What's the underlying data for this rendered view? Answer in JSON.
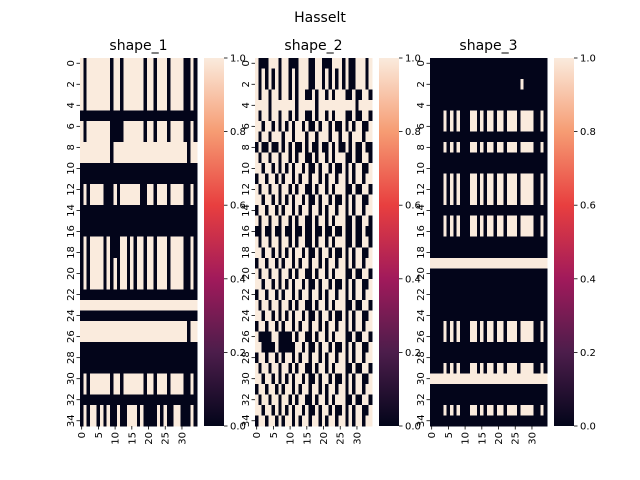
{
  "figure": {
    "title": "Hasselt"
  },
  "colorbar": {
    "ticks": [
      "0.0",
      "0.2",
      "0.4",
      "0.6",
      "0.8",
      "1.0"
    ],
    "colormap": "rocket",
    "stops": [
      "#03051a",
      "#4c1d4b",
      "#a11a5b",
      "#e83f3f",
      "#f69c73",
      "#faebdd"
    ]
  },
  "chart_data": [
    {
      "type": "heatmap",
      "title": "shape_1",
      "rows": 35,
      "cols": 35,
      "ytick_labels": [
        "0",
        "2",
        "4",
        "6",
        "8",
        "10",
        "12",
        "14",
        "16",
        "18",
        "20",
        "22",
        "24",
        "26",
        "28",
        "30",
        "32",
        "34"
      ],
      "xtick_labels": [
        "0",
        "5",
        "10",
        "15",
        "20",
        "25",
        "30"
      ],
      "vmin": 0,
      "vmax": 1,
      "values": [
        "10111111101101111110110111011110010",
        "10111111101101111110110111011110010",
        "10111111101101111110110111011110010",
        "10111111101101111110110111011110010",
        "10111111101101111110110111011110010",
        "00000000000000000000000000000000000",
        "10111111100001111110110111011110010",
        "10111111100001111110110111011110010",
        "11111111101111111111111111111111011",
        "11111111101111111111111111111111011",
        "00000000000000000000000000000000000",
        "00000000000000000000000000000000000",
        "01011110001011111100110111011110010",
        "01011110001011111100110111011110010",
        "00000000000000000000000000000000000",
        "00000000000000000000000000000000000",
        "00000000000000000000000000000000000",
        "01011110100011010110110111011110010",
        "01011110100011010110110111011110010",
        "01011110101011010110110111011110010",
        "01011110101011010110110111011110010",
        "01011110101011010110110111011110010",
        "00000000000000000000000000000000000",
        "11111111111111111111111111111111111",
        "00000000000000000000000000000000000",
        "11111111111111111111111111111111011",
        "11111111111111111111111111111111011",
        "00000000000000000000000000000000000",
        "00000000000000000000000000000000000",
        "00000000000000000000000000000000000",
        "01011111101101111110110111011110010",
        "01011111101101111110110111011110010",
        "00000000000000000000000000000000000",
        "01011010100100111010000101001100010",
        "01011010100100111010000101001100010"
      ]
    },
    {
      "type": "heatmap",
      "title": "shape_2",
      "rows": 35,
      "cols": 35,
      "ytick_labels": [
        "0",
        "2",
        "4",
        "6",
        "8",
        "10",
        "12",
        "14",
        "16",
        "18",
        "20",
        "22",
        "24",
        "26",
        "28",
        "30",
        "32",
        "34"
      ],
      "xtick_labels": [
        "0",
        "5",
        "10",
        "15",
        "20",
        "25",
        "30"
      ],
      "vmin": 0,
      "vmax": 1,
      "values": [
        "10001110110001110011000111010011101",
        "10101010110101110011010101010011101",
        "10101010110101110011010101010011101",
        "10110110110101100101101011100100110",
        "11110111111101111101111111111101111",
        "10110110110101100101101011100100110",
        "11011010101011010010110100101011001",
        "10110111011011101101110110110111011",
        "01001001010100101001001010010100100",
        "10110110110101100101101011100100110",
        "11011010101011010010110100101011001",
        "01101101011010110110101101101011011",
        "10110110110101100101101011100100110",
        "11011010101011010010110100101011001",
        "01101101011010110110101101101011011",
        "10110110110101100101101011100100110",
        "00100100100100100100100100100100100",
        "10110110110101100101101011100100110",
        "11011010101011010010110100101011001",
        "01101101011010110110101101101011011",
        "10110110110101100101101011100100110",
        "11011010101011010010110100101011001",
        "01101101011010110110101101101011011",
        "10110110110101100101101011100100110",
        "11011010101011010010110100101011001",
        "01101101011010110110101101101011011",
        "10000110000101100101101011100100110",
        "11000010000011010010110100101011001",
        "01101101011010110110101101101011011",
        "10110110110101100101101011100100110",
        "11011010101011010010110100101011001",
        "01101101011010110110101101101011011",
        "10110110110101100101101011100100110",
        "11011010101011010010110100101011001",
        "01101101011010110110101101101011011"
      ]
    },
    {
      "type": "heatmap",
      "title": "shape_3",
      "rows": 35,
      "cols": 35,
      "ytick_labels": [
        "0",
        "2",
        "4",
        "6",
        "8",
        "10",
        "12",
        "14",
        "16",
        "18",
        "20",
        "22",
        "24",
        "26",
        "28",
        "30",
        "32",
        "34"
      ],
      "xtick_labels": [
        "0",
        "5",
        "10",
        "15",
        "20",
        "25",
        "30"
      ],
      "vmin": 0,
      "vmax": 1,
      "values": [
        "00000000000000000000000000000000000",
        "00000000000000000000000000000000000",
        "00000000000000000000000000010000000",
        "00000000000000000000000000000000000",
        "00000000000000000000000000000000000",
        "00001010100011010110110111011110010",
        "00001010100011010110110111011110010",
        "00000000000000000000000000000000000",
        "00001010100011010110110111011110010",
        "00000000000000000000000000000000000",
        "00000000000000000000000000000000000",
        "00001010100011010110110111011110010",
        "00001010100011010110110111011110010",
        "00001010100011010110110111011110010",
        "00000000000000000000000000000000000",
        "00001010100011010110110111011110010",
        "00001010100011010110110111011110010",
        "00000000000000000000000000000000000",
        "00000000000000000000000000000000000",
        "11111111111111111111111111111111111",
        "00000000000000000000000000000000000",
        "00000000000000000000000000000000000",
        "00000000000000000000000000000000000",
        "00000000000000000000000000000000000",
        "00000000000000000000000000000000000",
        "00001010100011010110110111011110010",
        "00001010100011010110110111011110010",
        "00000000000000000000000000000000000",
        "00000000000000000000000000000000000",
        "00001010100011010110110111011110010",
        "11111111111111111111111111111111111",
        "00000000000000000000000000000000000",
        "00000000000000000000000000000000000",
        "00001010100011010110110111011110010",
        "00000000000000000000000000000000000"
      ]
    }
  ]
}
